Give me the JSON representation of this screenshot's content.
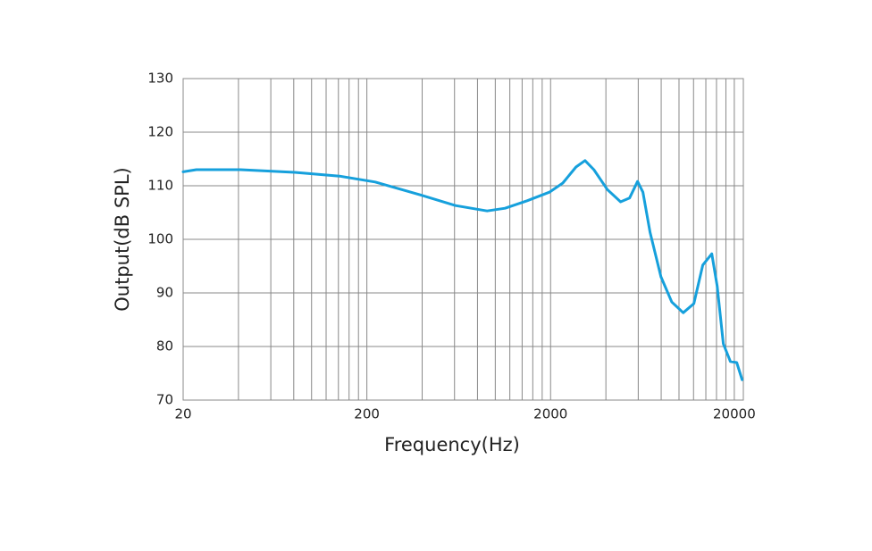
{
  "chart_data": {
    "type": "line",
    "x_label": "Frequency(Hz)",
    "y_label": "Output(dB SPL)",
    "x": [
      20,
      23.6,
      41,
      81,
      142,
      222,
      390,
      608,
      903,
      1130,
      1490,
      1970,
      2330,
      2750,
      3080,
      3440,
      4070,
      4810,
      5380,
      5950,
      6360,
      6960,
      7980,
      9130,
      10540,
      12050,
      13480,
      15080,
      16130,
      17440,
      19050,
      20630,
      22060
    ],
    "series": [
      {
        "name": "Output",
        "color": "#16a0dc",
        "values": [
          112.6,
          113,
          113,
          112.5,
          111.8,
          110.7,
          108.3,
          106.3,
          105.3,
          105.8,
          107.2,
          108.8,
          110.5,
          113.5,
          114.7,
          113,
          109.3,
          107,
          107.7,
          110.8,
          108.8,
          101.3,
          93,
          88.3,
          86.3,
          88,
          95.2,
          97.3,
          91.3,
          80.5,
          77.2,
          77,
          73.8
        ]
      }
    ],
    "xscale": "log",
    "xlim": [
      20,
      22400
    ],
    "xticks": [
      20,
      200,
      2000,
      20000
    ],
    "xgrid_lines": [
      40,
      60,
      80,
      100,
      120,
      140,
      160,
      180,
      400,
      600,
      800,
      1000,
      1200,
      1400,
      1600,
      1800,
      4000,
      6000,
      8000,
      10000,
      12000,
      14000,
      16000,
      18000
    ],
    "ylim": [
      70,
      130
    ],
    "yticks": [
      70,
      80,
      90,
      100,
      110,
      120,
      130
    ],
    "grid": true
  }
}
